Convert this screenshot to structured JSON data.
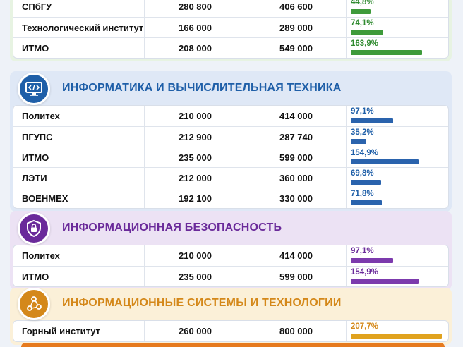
{
  "sections": [
    {
      "key": "top",
      "title": "",
      "icon": "",
      "color": "#2f8a2f",
      "bar_color": "#3e9a3a",
      "bg": "#e7f3e2",
      "rows": [
        {
          "name": "СПбГУ",
          "v1": "280 800",
          "v2": "406 600",
          "pct": "44,8%",
          "pct_value": 44.8
        },
        {
          "name": "Технологический институт",
          "v1": "166 000",
          "v2": "289 000",
          "pct": "74,1%",
          "pct_value": 74.1
        },
        {
          "name": "ИТМО",
          "v1": "208 000",
          "v2": "549 000",
          "pct": "163,9%",
          "pct_value": 163.9
        }
      ]
    },
    {
      "key": "it",
      "title": "ИНФОРМАТИКА И ВЫЧИСЛИТЕЛЬНАЯ ТЕХНИКА",
      "icon": "monitor-code-icon",
      "color": "#1f5fa8",
      "bar_color": "#2a63ad",
      "bg": "#dfe8f6",
      "rows": [
        {
          "name": "Политех",
          "v1": "210 000",
          "v2": "414 000",
          "pct": "97,1%",
          "pct_value": 97.1
        },
        {
          "name": "ПГУПС",
          "v1": "212 900",
          "v2": "287 740",
          "pct": "35,2%",
          "pct_value": 35.2
        },
        {
          "name": "ИТМО",
          "v1": "235 000",
          "v2": "599 000",
          "pct": "154,9%",
          "pct_value": 154.9
        },
        {
          "name": "ЛЭТИ",
          "v1": "212 000",
          "v2": "360 000",
          "pct": "69,8%",
          "pct_value": 69.8
        },
        {
          "name": "ВОЕНМЕХ",
          "v1": "192 100",
          "v2": "330 000",
          "pct": "71,8%",
          "pct_value": 71.8
        }
      ]
    },
    {
      "key": "sec",
      "title": "ИНФОРМАЦИОННАЯ БЕЗОПАСНОСТЬ",
      "icon": "shield-lock-icon",
      "color": "#6a2a9a",
      "bar_color": "#7c3aad",
      "bg": "#ece2f4",
      "rows": [
        {
          "name": "Политех",
          "v1": "210 000",
          "v2": "414 000",
          "pct": "97,1%",
          "pct_value": 97.1
        },
        {
          "name": "ИТМО",
          "v1": "235 000",
          "v2": "599 000",
          "pct": "154,9%",
          "pct_value": 154.9
        }
      ]
    },
    {
      "key": "sys",
      "title": "ИНФОРМАЦИОННЫЕ СИСТЕМЫ И ТЕХНОЛОГИИ",
      "icon": "network-nodes-icon",
      "color": "#d4881a",
      "bar_color": "#e0a21e",
      "bg": "#fbf0d8",
      "rows": [
        {
          "name": "Горный институт",
          "v1": "260 000",
          "v2": "800 000",
          "pct": "207,7%",
          "pct_value": 207.7
        }
      ]
    }
  ]
}
